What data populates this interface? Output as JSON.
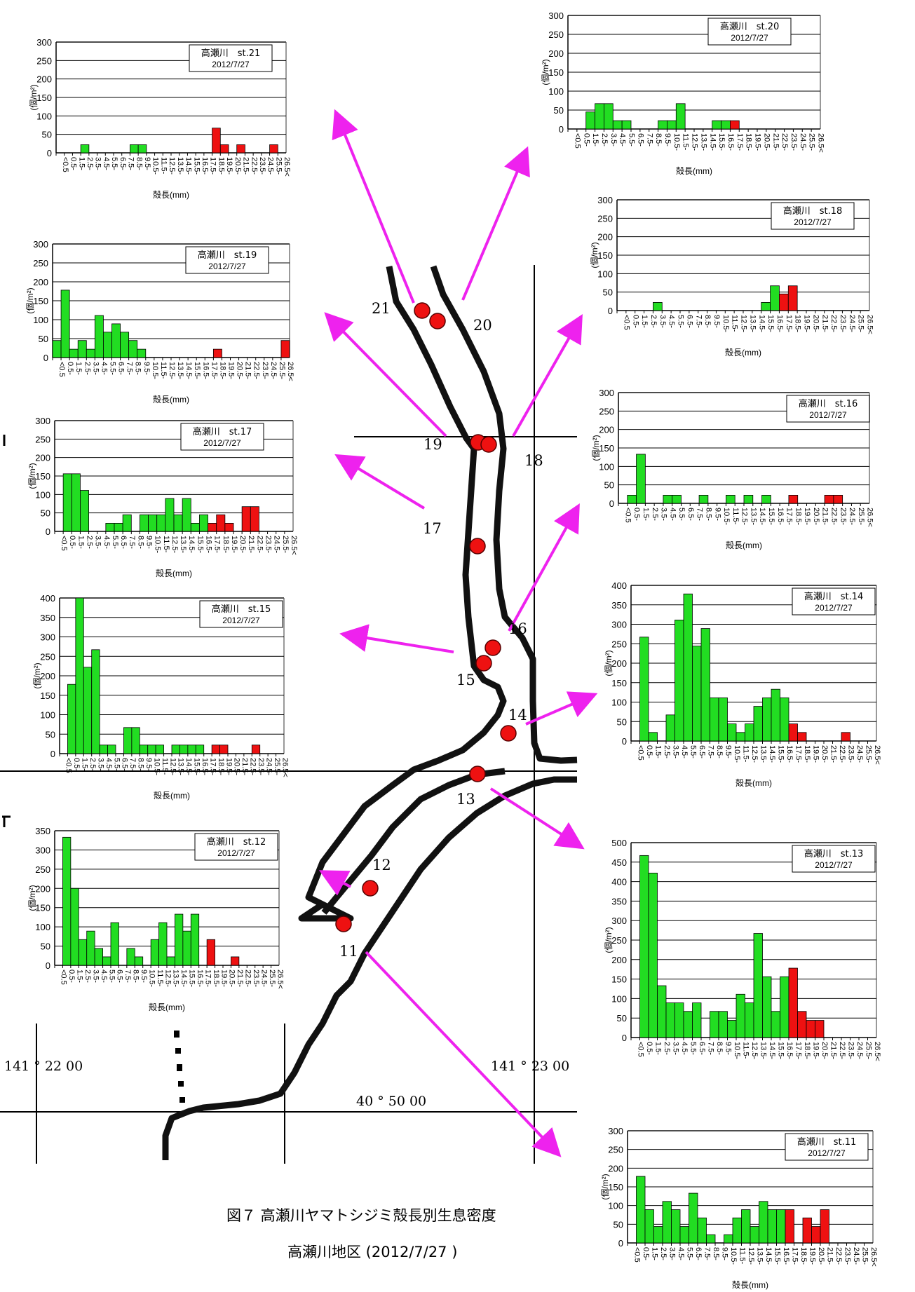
{
  "figure": {
    "caption": "図７ 高瀬川ヤマトシジミ殻長別生息密度",
    "subcaption": "高瀬川地区 (2012/7/27 )"
  },
  "map": {
    "coords": [
      "141 ° 22   00",
      "141 ° 23   00",
      "40 ° 50   00"
    ],
    "station_labels": [
      "21",
      "20",
      "19",
      "18",
      "17",
      "16",
      "15",
      "14",
      "13",
      "12",
      "11"
    ]
  },
  "colors": {
    "juvenile": "#22dd22",
    "adult": "#ee1111",
    "station": "#ee1111",
    "arrow": "#ee22ee",
    "river": "#111111"
  },
  "categories": [
    "<0.5",
    "0.5-",
    "1.5-",
    "2.5-",
    "3.5-",
    "4.5-",
    "5.5-",
    "6.5-",
    "7.5-",
    "8.5-",
    "9.5-",
    "10.5-",
    "11.5-",
    "12.5-",
    "13.5-",
    "14.5-",
    "15.5-",
    "16.5-",
    "17.5-",
    "18.5-",
    "19.5-",
    "20.5-",
    "21.5-",
    "22.5-",
    "23.5-",
    "24.5-",
    "25.5-",
    "26.5<"
  ],
  "chart_data": [
    {
      "type": "bar",
      "title": "高瀬川　st.21",
      "subtitle": "2012/7/27",
      "xlabel": "殻長(mm)",
      "ylabel": "(個/m²)",
      "ylim": [
        0,
        300
      ],
      "yticks": [
        0,
        50,
        100,
        150,
        200,
        250,
        300
      ],
      "red_from": 18,
      "values": [
        0,
        0,
        0,
        22,
        0,
        0,
        0,
        0,
        0,
        22,
        22,
        0,
        0,
        0,
        0,
        0,
        0,
        0,
        0,
        67,
        22,
        0,
        22,
        0,
        0,
        0,
        22,
        0
      ]
    },
    {
      "type": "bar",
      "title": "高瀬川　st.20",
      "subtitle": "2012/7/27",
      "xlabel": "殻長(mm)",
      "ylabel": "(個/m²)",
      "ylim": [
        0,
        300
      ],
      "yticks": [
        0,
        50,
        100,
        150,
        200,
        250,
        300
      ],
      "red_from": 18,
      "values": [
        0,
        0,
        45,
        67,
        67,
        22,
        22,
        0,
        0,
        0,
        22,
        22,
        67,
        0,
        0,
        0,
        22,
        22,
        22,
        0,
        0,
        0,
        0,
        0,
        0,
        0,
        0,
        0
      ]
    },
    {
      "type": "bar",
      "title": "高瀬川　st.19",
      "subtitle": "2012/7/27",
      "xlabel": "殻長(mm)",
      "ylabel": "(個/m²)",
      "ylim": [
        0,
        300
      ],
      "yticks": [
        0,
        50,
        100,
        150,
        200,
        250,
        300
      ],
      "red_from": 18,
      "values": [
        45,
        178,
        22,
        45,
        22,
        111,
        67,
        89,
        67,
        45,
        22,
        0,
        0,
        0,
        0,
        0,
        0,
        0,
        0,
        22,
        0,
        0,
        0,
        0,
        0,
        0,
        0,
        45
      ]
    },
    {
      "type": "bar",
      "title": "高瀬川　st.18",
      "subtitle": "2012/7/27",
      "xlabel": "殻長(mm)",
      "ylabel": "(個/m²)",
      "ylim": [
        0,
        300
      ],
      "yticks": [
        0,
        50,
        100,
        150,
        200,
        250,
        300
      ],
      "red_from": 18,
      "values": [
        0,
        0,
        0,
        0,
        22,
        0,
        0,
        0,
        0,
        0,
        0,
        0,
        0,
        0,
        0,
        0,
        22,
        67,
        45,
        67,
        0,
        0,
        0,
        0,
        0,
        0,
        0,
        0
      ]
    },
    {
      "type": "bar",
      "title": "高瀬川　st.17",
      "subtitle": "2012/7/27",
      "xlabel": "殻長(mm)",
      "ylabel": "(個/m²)",
      "ylim": [
        0,
        300
      ],
      "yticks": [
        0,
        50,
        100,
        150,
        200,
        250,
        300
      ],
      "red_from": 18,
      "values": [
        0,
        156,
        156,
        111,
        0,
        0,
        22,
        22,
        45,
        0,
        45,
        45,
        45,
        89,
        45,
        89,
        22,
        45,
        22,
        45,
        22,
        0,
        67,
        67,
        0,
        0,
        0,
        0
      ]
    },
    {
      "type": "bar",
      "title": "高瀬川　st.16",
      "subtitle": "2012/7/27",
      "xlabel": "殻長(mm)",
      "ylabel": "(個/m²)",
      "ylim": [
        0,
        300
      ],
      "yticks": [
        0,
        50,
        100,
        150,
        200,
        250,
        300
      ],
      "red_from": 18,
      "values": [
        0,
        22,
        133,
        0,
        0,
        22,
        22,
        0,
        0,
        22,
        0,
        0,
        22,
        0,
        22,
        0,
        22,
        0,
        0,
        22,
        0,
        0,
        0,
        22,
        22,
        0,
        0,
        0
      ]
    },
    {
      "type": "bar",
      "title": "高瀬川　st.15",
      "subtitle": "2012/7/27",
      "xlabel": "殻長(mm)",
      "ylabel": "(個/m²)",
      "ylim": [
        0,
        400
      ],
      "yticks": [
        0,
        50,
        100,
        150,
        200,
        250,
        300,
        350,
        400
      ],
      "red_from": 18,
      "values": [
        0,
        178,
        400,
        222,
        267,
        22,
        22,
        0,
        67,
        67,
        22,
        22,
        22,
        0,
        22,
        22,
        22,
        22,
        0,
        22,
        22,
        0,
        0,
        0,
        22,
        0,
        0,
        0
      ]
    },
    {
      "type": "bar",
      "title": "高瀬川　st.14",
      "subtitle": "2012/7/27",
      "xlabel": "殻長(mm)",
      "ylabel": "(個/m²)",
      "ylim": [
        0,
        400
      ],
      "yticks": [
        0,
        50,
        100,
        150,
        200,
        250,
        300,
        350,
        400
      ],
      "red_from": 18,
      "values": [
        0,
        267,
        22,
        0,
        67,
        311,
        378,
        244,
        289,
        111,
        111,
        44,
        22,
        44,
        89,
        111,
        133,
        111,
        44,
        22,
        0,
        0,
        0,
        0,
        22,
        0,
        0,
        0
      ]
    },
    {
      "type": "bar",
      "title": "高瀬川　st.13",
      "subtitle": "2012/7/27",
      "xlabel": "",
      "ylabel": "(個/m²)",
      "ylim": [
        0,
        500
      ],
      "yticks": [
        0,
        50,
        100,
        150,
        200,
        250,
        300,
        350,
        400,
        450,
        500
      ],
      "red_from": 18,
      "values": [
        0,
        467,
        422,
        133,
        89,
        89,
        67,
        89,
        0,
        67,
        67,
        44,
        111,
        89,
        267,
        156,
        67,
        156,
        178,
        67,
        44,
        44,
        0,
        0,
        0,
        0,
        0,
        0
      ]
    },
    {
      "type": "bar",
      "title": "高瀬川　st.12",
      "subtitle": "2012/7/27",
      "xlabel": "殻長(mm)",
      "ylabel": "(個/m²)",
      "ylim": [
        0,
        350
      ],
      "yticks": [
        0,
        50,
        100,
        150,
        200,
        250,
        300,
        350
      ],
      "red_from": 18,
      "values": [
        0,
        333,
        200,
        67,
        89,
        44,
        22,
        111,
        0,
        44,
        22,
        0,
        67,
        111,
        22,
        133,
        89,
        133,
        0,
        67,
        0,
        0,
        22,
        0,
        0,
        0,
        0,
        0
      ]
    },
    {
      "type": "bar",
      "title": "高瀬川　st.11",
      "subtitle": "2012/7/27",
      "xlabel": "殻長(mm)",
      "ylabel": "(個/m²)",
      "ylim": [
        0,
        300
      ],
      "yticks": [
        0,
        50,
        100,
        150,
        200,
        250,
        300
      ],
      "red_from": 18,
      "values": [
        0,
        178,
        89,
        44,
        111,
        89,
        44,
        133,
        67,
        22,
        0,
        22,
        67,
        89,
        44,
        111,
        89,
        89,
        89,
        0,
        67,
        44,
        89,
        0,
        0,
        0,
        0,
        0
      ]
    }
  ]
}
